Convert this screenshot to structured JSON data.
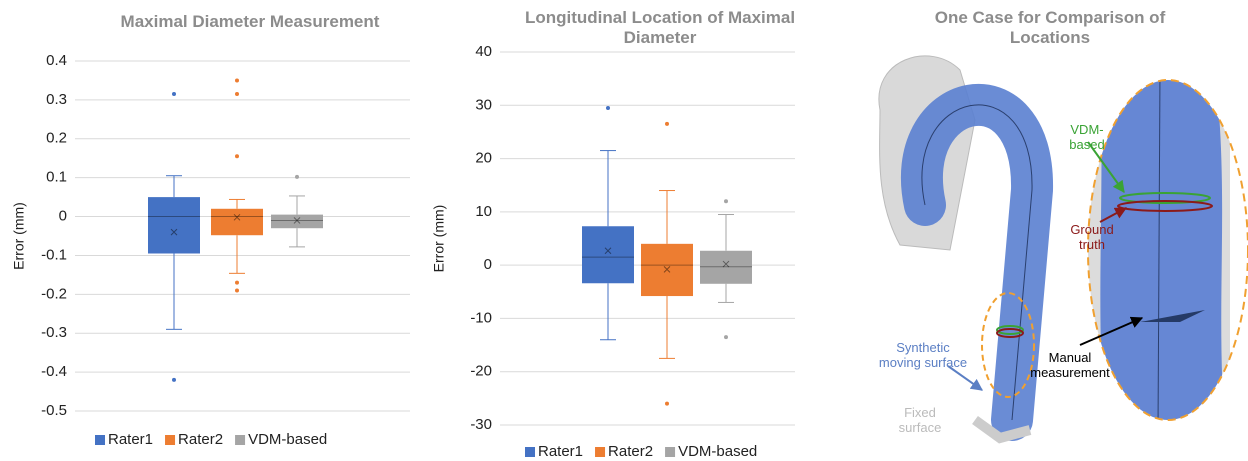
{
  "chart_data": [
    {
      "type": "box",
      "title": "Maximal Diameter Measurement",
      "ylabel": "Error (mm)",
      "ylim": [
        -0.5,
        0.4
      ],
      "yticks": [
        -0.5,
        -0.4,
        -0.3,
        -0.2,
        -0.1,
        0,
        0.1,
        0.2,
        0.3,
        0.4
      ],
      "grid": true,
      "series": [
        {
          "name": "Rater1",
          "color": "#4472c4",
          "min": -0.29,
          "q1": -0.095,
          "median": 0,
          "q3": 0.05,
          "max": 0.105,
          "mean": -0.04,
          "outliers": [
            0.315,
            -0.42
          ]
        },
        {
          "name": "Rater2",
          "color": "#ed7d31",
          "min": -0.146,
          "q1": -0.048,
          "median": 0,
          "q3": 0.02,
          "max": 0.044,
          "mean": -0.002,
          "outliers": [
            0.35,
            0.315,
            0.155,
            -0.17,
            -0.19
          ]
        },
        {
          "name": "VDM-based",
          "color": "#a5a5a5",
          "min": -0.078,
          "q1": -0.03,
          "median": -0.01,
          "q3": 0.005,
          "max": 0.053,
          "mean": -0.01,
          "outliers": [
            0.102
          ]
        }
      ]
    },
    {
      "type": "box",
      "title": "Longitudinal Location of Maximal Diameter",
      "ylabel": "Error (mm)",
      "ylim": [
        -30,
        40
      ],
      "yticks": [
        -30,
        -20,
        -10,
        0,
        10,
        20,
        30,
        40
      ],
      "grid": true,
      "series": [
        {
          "name": "Rater1",
          "color": "#4472c4",
          "min": -14,
          "q1": -3.4,
          "median": 1.5,
          "q3": 7.3,
          "max": 21.5,
          "mean": 2.7,
          "outliers": [
            29.5
          ]
        },
        {
          "name": "Rater2",
          "color": "#ed7d31",
          "min": -17.5,
          "q1": -5.8,
          "median": 0,
          "q3": 4,
          "max": 14,
          "mean": -0.8,
          "outliers": [
            26.5,
            -26
          ]
        },
        {
          "name": "VDM-based",
          "color": "#a5a5a5",
          "min": -7,
          "q1": -3.5,
          "median": -0.3,
          "q3": 2.7,
          "max": 9.5,
          "mean": 0.2,
          "outliers": [
            12,
            -13.5
          ]
        }
      ]
    }
  ],
  "illustration": {
    "title": "One Case for Comparison of Locations",
    "labels": {
      "vdm": "VDM-based",
      "ground_truth": "Ground truth",
      "manual": "Manual measurement",
      "synthetic": "Synthetic moving surface",
      "fixed": "Fixed surface"
    }
  }
}
